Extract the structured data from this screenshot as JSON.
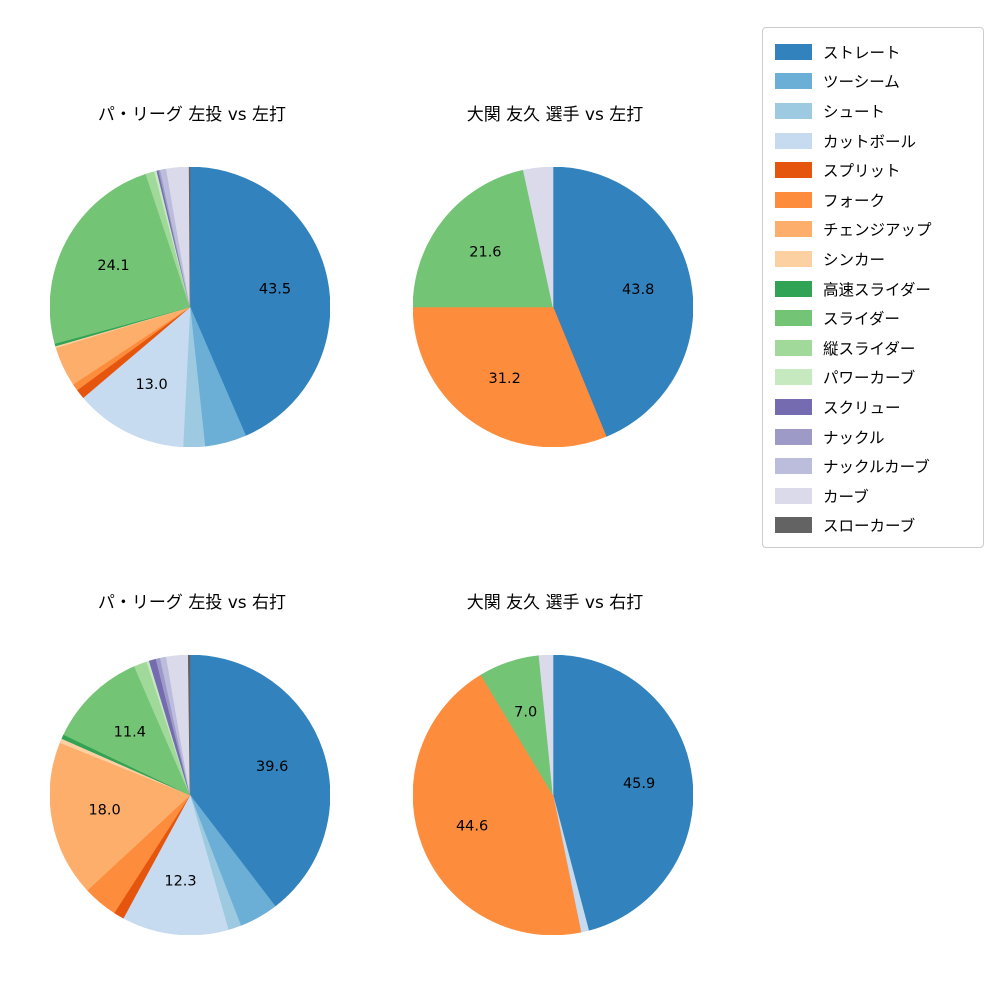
{
  "figure": {
    "background": "#ffffff"
  },
  "legend": {
    "items": [
      {
        "label": "ストレート",
        "color": "#3182bd"
      },
      {
        "label": "ツーシーム",
        "color": "#6baed6"
      },
      {
        "label": "シュート",
        "color": "#9ecae1"
      },
      {
        "label": "カットボール",
        "color": "#c6dbef"
      },
      {
        "label": "スプリット",
        "color": "#e6550d"
      },
      {
        "label": "フォーク",
        "color": "#fd8d3c"
      },
      {
        "label": "チェンジアップ",
        "color": "#fdae6b"
      },
      {
        "label": "シンカー",
        "color": "#fdd0a2"
      },
      {
        "label": "高速スライダー",
        "color": "#31a354"
      },
      {
        "label": "スライダー",
        "color": "#74c476"
      },
      {
        "label": "縦スライダー",
        "color": "#a1d99b"
      },
      {
        "label": "パワーカーブ",
        "color": "#c7e9c0"
      },
      {
        "label": "スクリュー",
        "color": "#756bb1"
      },
      {
        "label": "ナックル",
        "color": "#9e9ac8"
      },
      {
        "label": "ナックルカーブ",
        "color": "#bcbddc"
      },
      {
        "label": "カーブ",
        "color": "#dadaeb"
      },
      {
        "label": "スローカーブ",
        "color": "#636363"
      }
    ]
  },
  "chart_data": [
    {
      "type": "pie",
      "title": "パ・リーグ 左投 vs 左打",
      "start_angle": "top",
      "direction": "clockwise",
      "label_threshold_pct": 5,
      "labeled_values": [
        43.5,
        13.0,
        24.1
      ],
      "slices": [
        {
          "label": "ストレート",
          "value": 43.5
        },
        {
          "label": "ツーシーム",
          "value": 4.8
        },
        {
          "label": "シュート",
          "value": 2.5
        },
        {
          "label": "カットボール",
          "value": 13.0
        },
        {
          "label": "スプリット",
          "value": 1.1
        },
        {
          "label": "フォーク",
          "value": 0.8
        },
        {
          "label": "チェンジアップ",
          "value": 4.6
        },
        {
          "label": "シンカー",
          "value": 0.2
        },
        {
          "label": "高速スライダー",
          "value": 0.3
        },
        {
          "label": "スライダー",
          "value": 24.1
        },
        {
          "label": "縦スライダー",
          "value": 1.0
        },
        {
          "label": "パワーカーブ",
          "value": 0.3
        },
        {
          "label": "スクリュー",
          "value": 0.2
        },
        {
          "label": "ナックル",
          "value": 0.2
        },
        {
          "label": "ナックルカーブ",
          "value": 0.7
        },
        {
          "label": "カーブ",
          "value": 2.6
        },
        {
          "label": "スローカーブ",
          "value": 0.1
        }
      ]
    },
    {
      "type": "pie",
      "title": "大関 友久 選手 vs 左打",
      "start_angle": "top",
      "direction": "clockwise",
      "label_threshold_pct": 5,
      "labeled_values": [
        43.8,
        31.2,
        21.6
      ],
      "slices": [
        {
          "label": "ストレート",
          "value": 43.8
        },
        {
          "label": "フォーク",
          "value": 31.2
        },
        {
          "label": "スライダー",
          "value": 21.6
        },
        {
          "label": "カーブ",
          "value": 3.4
        }
      ]
    },
    {
      "type": "pie",
      "title": "パ・リーグ 左投 vs 右打",
      "start_angle": "top",
      "direction": "clockwise",
      "label_threshold_pct": 5,
      "labeled_values": [
        39.6,
        12.3,
        18.0,
        11.4
      ],
      "slices": [
        {
          "label": "ストレート",
          "value": 39.6
        },
        {
          "label": "ツーシーム",
          "value": 4.5
        },
        {
          "label": "シュート",
          "value": 1.5
        },
        {
          "label": "カットボール",
          "value": 12.3
        },
        {
          "label": "スプリット",
          "value": 1.2
        },
        {
          "label": "フォーク",
          "value": 4.0
        },
        {
          "label": "チェンジアップ",
          "value": 18.0
        },
        {
          "label": "シンカー",
          "value": 0.5
        },
        {
          "label": "高速スライダー",
          "value": 0.5
        },
        {
          "label": "スライダー",
          "value": 11.4
        },
        {
          "label": "縦スライダー",
          "value": 1.5
        },
        {
          "label": "パワーカーブ",
          "value": 0.3
        },
        {
          "label": "スクリュー",
          "value": 0.8
        },
        {
          "label": "ナックル",
          "value": 0.5
        },
        {
          "label": "ナックルカーブ",
          "value": 0.7
        },
        {
          "label": "カーブ",
          "value": 2.5
        },
        {
          "label": "スローカーブ",
          "value": 0.2
        }
      ]
    },
    {
      "type": "pie",
      "title": "大関 友久 選手 vs 右打",
      "start_angle": "top",
      "direction": "clockwise",
      "label_threshold_pct": 5,
      "labeled_values": [
        45.9,
        44.6,
        7.0
      ],
      "slices": [
        {
          "label": "ストレート",
          "value": 45.9
        },
        {
          "label": "カットボール",
          "value": 0.9
        },
        {
          "label": "フォーク",
          "value": 44.6
        },
        {
          "label": "スライダー",
          "value": 7.0
        },
        {
          "label": "カーブ",
          "value": 1.6
        }
      ]
    }
  ]
}
